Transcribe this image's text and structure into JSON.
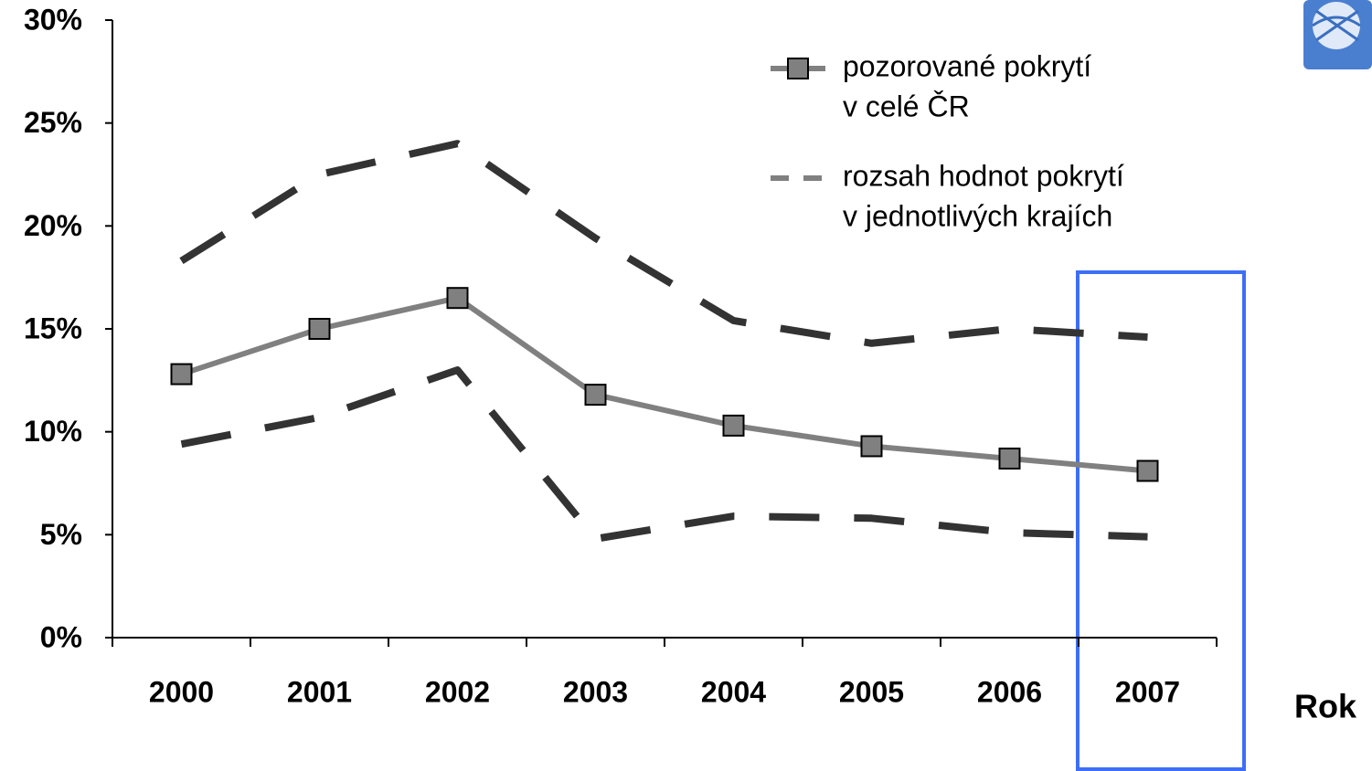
{
  "chart_data": {
    "type": "line",
    "x_label": "Rok",
    "categories": [
      "2000",
      "2001",
      "2002",
      "2003",
      "2004",
      "2005",
      "2006",
      "2007"
    ],
    "series": [
      {
        "color": "#808080",
        "style": "solid",
        "marker": "square",
        "values": [
          12.8,
          15.0,
          16.5,
          11.8,
          10.3,
          9.3,
          8.7,
          8.1
        ]
      },
      {
        "color": "#333333",
        "style": "dashed",
        "values": [
          18.3,
          22.5,
          24.0,
          19.4,
          15.4,
          14.3,
          15.0,
          14.6
        ]
      },
      {
        "color": "#333333",
        "style": "dashed",
        "values": [
          9.4,
          10.7,
          13.0,
          4.8,
          5.9,
          5.8,
          5.1,
          4.9
        ]
      }
    ],
    "legend": [
      {
        "lines": [
          "pozorované pokrytí",
          "v celé ČR"
        ],
        "color": "#808080",
        "style": "solid",
        "marker": "square"
      },
      {
        "lines": [
          "rozsah hodnot pokrytí",
          "v jednotlivých krajích"
        ],
        "color": "#808080",
        "style": "dashed"
      }
    ],
    "ylim": [
      0,
      30
    ],
    "yticks": [
      {
        "value": 0,
        "label": "0%"
      },
      {
        "value": 5,
        "label": "5%"
      },
      {
        "value": 10,
        "label": "10%"
      },
      {
        "value": 15,
        "label": "15%"
      },
      {
        "value": 20,
        "label": "20%"
      },
      {
        "value": 25,
        "label": "25%"
      },
      {
        "value": 30,
        "label": "30%"
      }
    ]
  }
}
